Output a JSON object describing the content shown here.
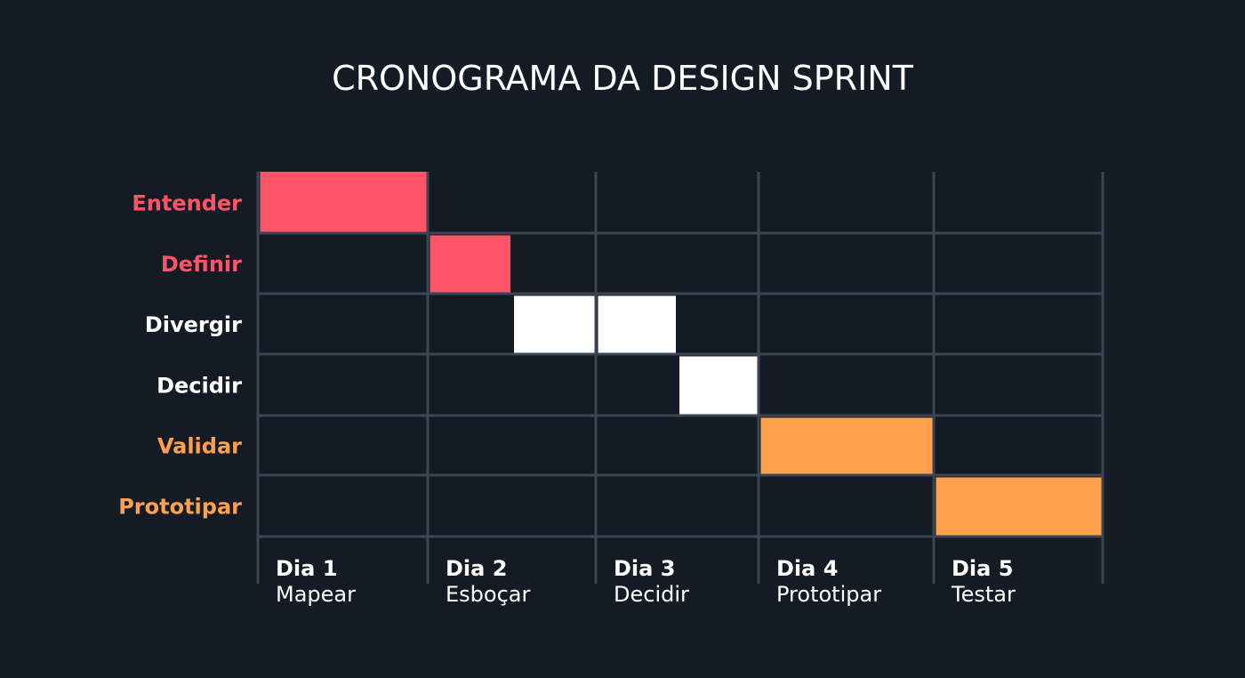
{
  "title": "CRONOGRAMA DA DESIGN SPRINT",
  "colors": {
    "background": "#151b24",
    "grid": "#3b4553",
    "red": "#ff5468",
    "white": "#ffffff",
    "orange": "#ffa04e"
  },
  "rows": [
    {
      "label": "Entender",
      "color": "#ff5468"
    },
    {
      "label": "Definir",
      "color": "#ff5468"
    },
    {
      "label": "Divergir",
      "color": "#ffffff"
    },
    {
      "label": "Decidir",
      "color": "#ffffff"
    },
    {
      "label": "Validar",
      "color": "#ffa04e"
    },
    {
      "label": "Prototipar",
      "color": "#ffa04e"
    }
  ],
  "days": [
    {
      "title": "Dia 1",
      "subtitle": "Mapear"
    },
    {
      "title": "Dia 2",
      "subtitle": "Esboçar"
    },
    {
      "title": "Dia 3",
      "subtitle": "Decidir"
    },
    {
      "title": "Dia 4",
      "subtitle": "Prototipar"
    },
    {
      "title": "Dia 5",
      "subtitle": "Testar"
    }
  ],
  "tasks": [
    {
      "row": 0,
      "start": 0,
      "end": 1,
      "color": "#ff5468"
    },
    {
      "row": 1,
      "start": 1,
      "end": 1.5,
      "color": "#ff5468"
    },
    {
      "row": 2,
      "start": 1.5,
      "end": 2,
      "color": "#ffffff"
    },
    {
      "row": 2,
      "start": 2,
      "end": 2.5,
      "color": "#ffffff"
    },
    {
      "row": 3,
      "start": 2.5,
      "end": 3,
      "color": "#ffffff"
    },
    {
      "row": 4,
      "start": 3,
      "end": 4,
      "color": "#ffa04e"
    },
    {
      "row": 5,
      "start": 4,
      "end": 5,
      "color": "#ffa04e"
    }
  ]
}
